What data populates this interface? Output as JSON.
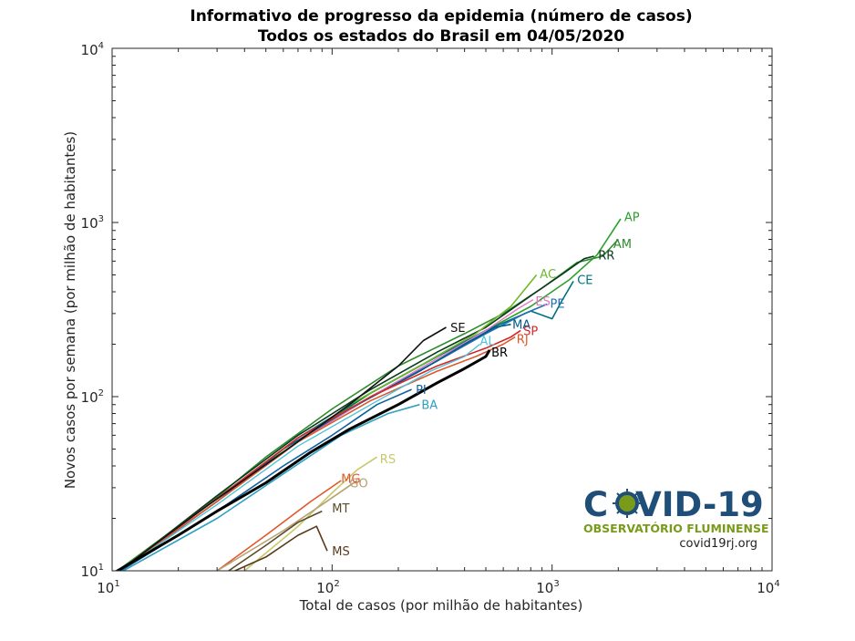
{
  "chart_data": {
    "type": "line",
    "title": "Informativo de progresso da epidemia (número de casos)",
    "subtitle": "Todos os estados do Brasil em 04/05/2020",
    "xlabel": "Total de casos (por milhão de habitantes)",
    "ylabel": "Novos casos por semana (por milhão de habitantes)",
    "xscale": "log",
    "yscale": "log",
    "xlim": [
      10,
      10000
    ],
    "ylim": [
      10,
      10000
    ],
    "x_tick_labels": [
      {
        "base": "10",
        "exp": "1"
      },
      {
        "base": "10",
        "exp": "2"
      },
      {
        "base": "10",
        "exp": "3"
      },
      {
        "base": "10",
        "exp": "4"
      }
    ],
    "y_tick_labels": [
      {
        "base": "10",
        "exp": "1"
      },
      {
        "base": "10",
        "exp": "2"
      },
      {
        "base": "10",
        "exp": "3"
      },
      {
        "base": "10",
        "exp": "4"
      }
    ],
    "grid": false,
    "series": [
      {
        "name": "AP",
        "color": "#2ca02c",
        "width": 1.6,
        "points": [
          [
            10,
            9.5
          ],
          [
            20,
            18
          ],
          [
            40,
            34
          ],
          [
            80,
            62
          ],
          [
            150,
            105
          ],
          [
            300,
            170
          ],
          [
            500,
            240
          ],
          [
            800,
            330
          ],
          [
            1200,
            470
          ],
          [
            1600,
            650
          ],
          [
            2050,
            1050
          ]
        ],
        "label_at": [
          2130,
          1080
        ]
      },
      {
        "name": "AM",
        "color": "#2e8b2e",
        "width": 1.6,
        "points": [
          [
            10,
            9.5
          ],
          [
            25,
            22
          ],
          [
            50,
            45
          ],
          [
            100,
            85
          ],
          [
            200,
            150
          ],
          [
            400,
            230
          ],
          [
            600,
            300
          ],
          [
            900,
            420
          ],
          [
            1300,
            590
          ],
          [
            1700,
            640
          ],
          [
            2000,
            800
          ]
        ],
        "label_at": [
          1900,
          760
        ]
      },
      {
        "name": "RR",
        "color": "#0a3a1a",
        "width": 1.6,
        "points": [
          [
            10,
            9.2
          ],
          [
            30,
            27
          ],
          [
            70,
            60
          ],
          [
            150,
            110
          ],
          [
            300,
            180
          ],
          [
            500,
            250
          ],
          [
            800,
            380
          ],
          [
            1100,
            500
          ],
          [
            1400,
            620
          ],
          [
            1550,
            640
          ]
        ],
        "label_at": [
          1620,
          650
        ]
      },
      {
        "name": "CE",
        "color": "#007080",
        "width": 1.6,
        "points": [
          [
            10,
            9.3
          ],
          [
            30,
            26
          ],
          [
            70,
            58
          ],
          [
            150,
            105
          ],
          [
            300,
            170
          ],
          [
            500,
            240
          ],
          [
            800,
            310
          ],
          [
            1000,
            280
          ],
          [
            1100,
            350
          ],
          [
            1250,
            460
          ]
        ],
        "label_at": [
          1300,
          470
        ]
      },
      {
        "name": "AC",
        "color": "#6fb82a",
        "width": 1.6,
        "points": [
          [
            10,
            9.3
          ],
          [
            25,
            22
          ],
          [
            60,
            48
          ],
          [
            120,
            90
          ],
          [
            250,
            150
          ],
          [
            450,
            230
          ],
          [
            650,
            330
          ],
          [
            850,
            500
          ]
        ],
        "label_at": [
          880,
          510
        ]
      },
      {
        "name": "PE",
        "color": "#1f6fb5",
        "width": 1.6,
        "points": [
          [
            10,
            9.3
          ],
          [
            30,
            25
          ],
          [
            70,
            55
          ],
          [
            150,
            100
          ],
          [
            300,
            160
          ],
          [
            500,
            230
          ],
          [
            750,
            300
          ],
          [
            950,
            340
          ]
        ],
        "label_at": [
          980,
          345
        ]
      },
      {
        "name": "ES",
        "color": "#e377c2",
        "width": 1.4,
        "points": [
          [
            10,
            9.4
          ],
          [
            30,
            25
          ],
          [
            70,
            55
          ],
          [
            150,
            100
          ],
          [
            300,
            165
          ],
          [
            500,
            240
          ],
          [
            700,
            320
          ],
          [
            820,
            360
          ]
        ],
        "label_at": [
          840,
          355
        ]
      },
      {
        "name": "MA",
        "color": "#005a8c",
        "width": 1.6,
        "points": [
          [
            10,
            9.2
          ],
          [
            30,
            25
          ],
          [
            60,
            50
          ],
          [
            120,
            85
          ],
          [
            250,
            140
          ],
          [
            400,
            200
          ],
          [
            550,
            250
          ],
          [
            650,
            260
          ]
        ],
        "label_at": [
          660,
          260
        ]
      },
      {
        "name": "SP",
        "color": "#d62728",
        "width": 1.6,
        "points": [
          [
            10,
            9.3
          ],
          [
            30,
            26
          ],
          [
            70,
            58
          ],
          [
            150,
            100
          ],
          [
            300,
            150
          ],
          [
            500,
            190
          ],
          [
            650,
            220
          ],
          [
            720,
            240
          ]
        ],
        "label_at": [
          740,
          240
        ]
      },
      {
        "name": "RJ",
        "color": "#e0562a",
        "width": 1.6,
        "points": [
          [
            10,
            9.3
          ],
          [
            30,
            25
          ],
          [
            70,
            55
          ],
          [
            150,
            95
          ],
          [
            300,
            140
          ],
          [
            450,
            170
          ],
          [
            600,
            200
          ],
          [
            680,
            220
          ]
        ],
        "label_at": [
          690,
          215
        ]
      },
      {
        "name": "SE",
        "color": "#111111",
        "width": 1.6,
        "points": [
          [
            10,
            9.3
          ],
          [
            25,
            22
          ],
          [
            60,
            48
          ],
          [
            120,
            90
          ],
          [
            200,
            150
          ],
          [
            260,
            210
          ],
          [
            330,
            250
          ]
        ],
        "label_at": [
          345,
          250
        ]
      },
      {
        "name": "AL",
        "color": "#4fc3d8",
        "width": 1.4,
        "points": [
          [
            10,
            9.3
          ],
          [
            30,
            24
          ],
          [
            70,
            52
          ],
          [
            150,
            90
          ],
          [
            280,
            140
          ],
          [
            400,
            170
          ],
          [
            470,
            200
          ]
        ],
        "label_at": [
          470,
          210
        ]
      },
      {
        "name": "BR",
        "color": "#000000",
        "width": 3.0,
        "points": [
          [
            10,
            9.6
          ],
          [
            20,
            16
          ],
          [
            30,
            22
          ],
          [
            50,
            32
          ],
          [
            80,
            48
          ],
          [
            120,
            65
          ],
          [
            200,
            90
          ],
          [
            300,
            120
          ],
          [
            400,
            145
          ],
          [
            500,
            170
          ],
          [
            520,
            185
          ]
        ],
        "label_at": [
          530,
          180
        ]
      },
      {
        "name": "PI",
        "color": "#1060a0",
        "width": 1.6,
        "points": [
          [
            10,
            9.3
          ],
          [
            30,
            22
          ],
          [
            60,
            40
          ],
          [
            100,
            60
          ],
          [
            160,
            90
          ],
          [
            230,
            110
          ]
        ],
        "label_at": [
          240,
          110
        ]
      },
      {
        "name": "BA",
        "color": "#30a0c0",
        "width": 1.6,
        "points": [
          [
            10,
            9.2
          ],
          [
            30,
            20
          ],
          [
            60,
            36
          ],
          [
            110,
            60
          ],
          [
            180,
            80
          ],
          [
            250,
            90
          ]
        ],
        "label_at": [
          255,
          90
        ]
      },
      {
        "name": "RS",
        "color": "#c8c86a",
        "width": 1.6,
        "points": [
          [
            20,
            6
          ],
          [
            40,
            10
          ],
          [
            70,
            18
          ],
          [
            100,
            28
          ],
          [
            130,
            38
          ],
          [
            160,
            45
          ]
        ],
        "label_at": [
          165,
          44
        ]
      },
      {
        "name": "MG",
        "color": "#e0562a",
        "width": 1.6,
        "points": [
          [
            15,
            6
          ],
          [
            30,
            10
          ],
          [
            50,
            16
          ],
          [
            80,
            25
          ],
          [
            110,
            33
          ]
        ],
        "label_at": [
          110,
          34
        ]
      },
      {
        "name": "GO",
        "color": "#b8a070",
        "width": 1.6,
        "points": [
          [
            15,
            6
          ],
          [
            30,
            10
          ],
          [
            60,
            17
          ],
          [
            90,
            24
          ],
          [
            130,
            33
          ]
        ],
        "label_at": [
          120,
          32
        ]
      },
      {
        "name": "MT",
        "color": "#5a4a2a",
        "width": 1.6,
        "points": [
          [
            15,
            6
          ],
          [
            30,
            9
          ],
          [
            50,
            14
          ],
          [
            70,
            19
          ],
          [
            90,
            22
          ]
        ],
        "label_at": [
          100,
          23
        ]
      },
      {
        "name": "MS",
        "color": "#5a3a1a",
        "width": 1.6,
        "points": [
          [
            15,
            6
          ],
          [
            30,
            9
          ],
          [
            50,
            12
          ],
          [
            70,
            16
          ],
          [
            85,
            18
          ],
          [
            95,
            13
          ]
        ],
        "label_at": [
          100,
          13
        ]
      }
    ]
  },
  "logo": {
    "title_pre": "C",
    "title_post": "VID-19",
    "subtitle": "OBSERVATÓRIO FLUMINENSE",
    "url": "covid19rj.org"
  },
  "colors": {
    "axis": "#262626",
    "logo_blue": "#1f4e79",
    "logo_green": "#7a9a1a"
  }
}
